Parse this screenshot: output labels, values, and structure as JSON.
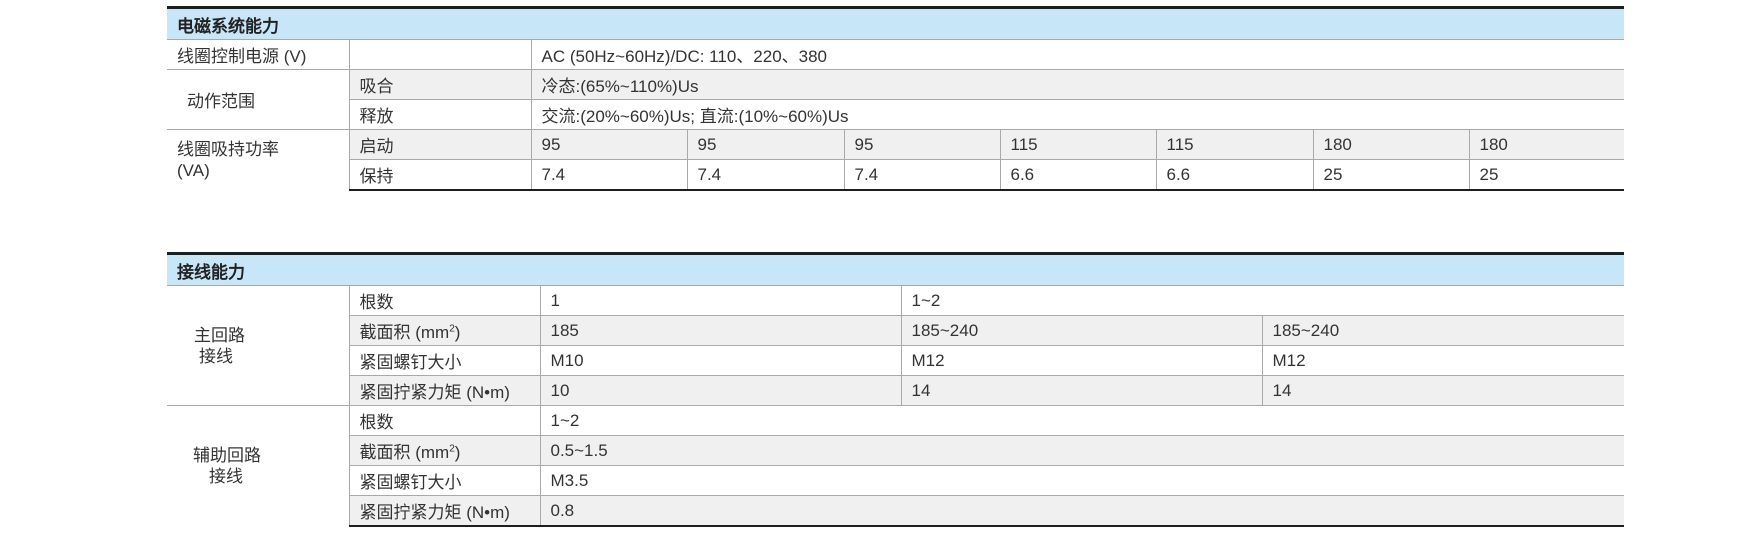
{
  "section1": {
    "title": "电磁系统能力",
    "coil_voltage": {
      "label": "线圈控制电源 (V)",
      "value": "AC (50Hz~60Hz)/DC:  110、220、380"
    },
    "action_range": {
      "label": "动作范围",
      "pickup": {
        "label": "吸合",
        "value": "冷态:(65%~110%)Us"
      },
      "release": {
        "label": "释放",
        "value": "交流:(20%~60%)Us;  直流:(10%~60%)Us"
      }
    },
    "coil_power": {
      "label_line1": "线圈吸持功率",
      "label_line2": "(VA)",
      "start": {
        "label": "启动",
        "values": [
          "95",
          "95",
          "95",
          "115",
          "115",
          "180",
          "180"
        ]
      },
      "hold": {
        "label": "保持",
        "values": [
          "7.4",
          "7.4",
          "7.4",
          "6.6",
          "6.6",
          "25",
          "25"
        ]
      }
    }
  },
  "section2": {
    "title": "接线能力",
    "main": {
      "label_line1": "主回路",
      "label_line2": "接线",
      "count": {
        "label": "根数",
        "values": [
          "1",
          "1~2"
        ]
      },
      "section": {
        "label_prefix": "截面积 (mm",
        "label_sup": "2",
        "label_suffix": ")",
        "values": [
          "185",
          "185~240",
          "185~240"
        ]
      },
      "screw": {
        "label": "紧固螺钉大小",
        "values": [
          "M10",
          "M12",
          "M12"
        ]
      },
      "torque": {
        "label": "紧固拧紧力矩 (N•m)",
        "values": [
          "10",
          "14",
          "14"
        ]
      }
    },
    "aux": {
      "label_line1": "辅助回路",
      "label_line2": "接线",
      "count": {
        "label": "根数",
        "value": "1~2"
      },
      "section": {
        "label_prefix": "截面积 (mm",
        "label_sup": "2",
        "label_suffix": ")",
        "value": "0.5~1.5"
      },
      "screw": {
        "label": "紧固螺钉大小",
        "value": "M3.5"
      },
      "torque": {
        "label": "紧固拧紧力矩 (N•m)",
        "value": "0.8"
      }
    }
  }
}
